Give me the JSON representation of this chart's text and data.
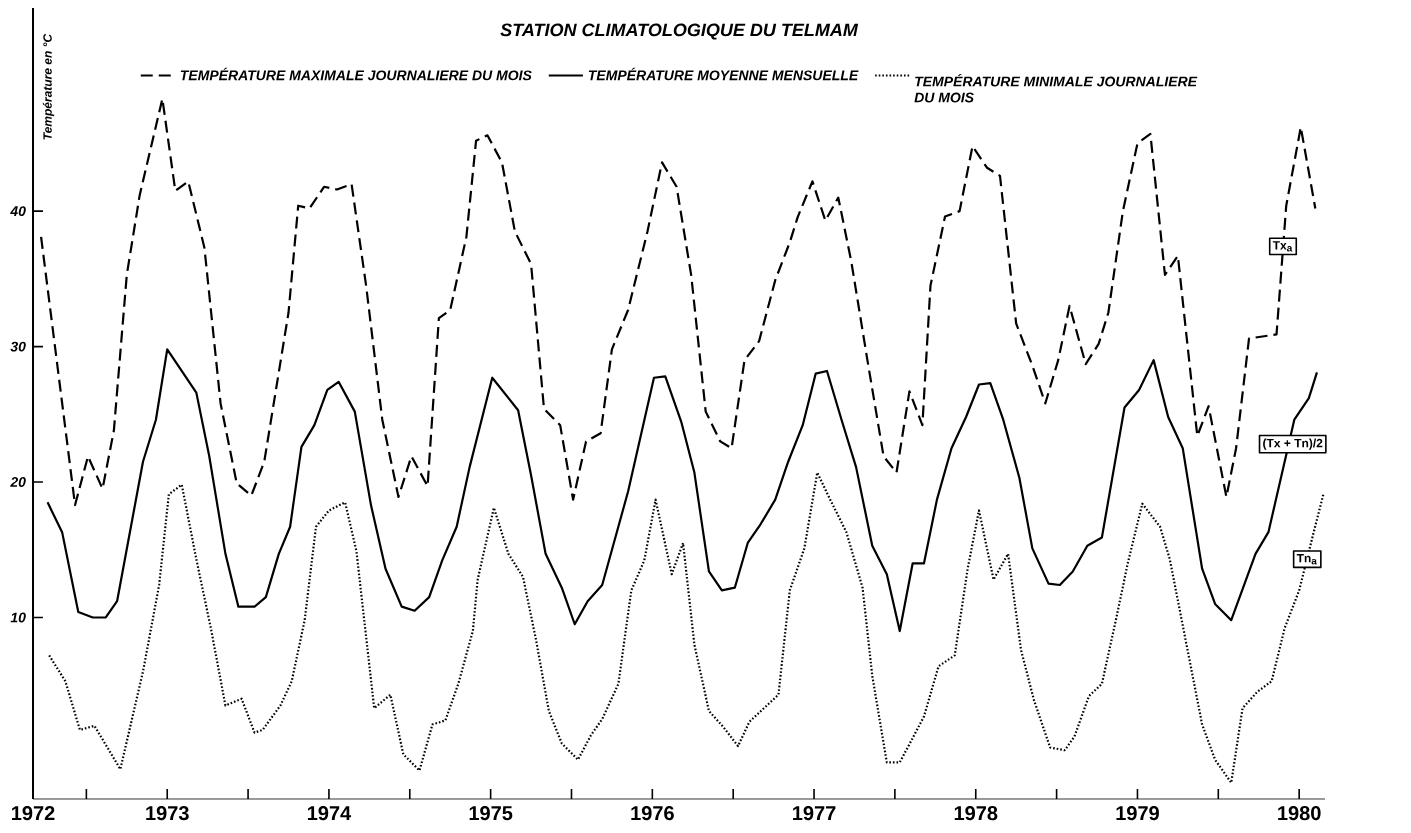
{
  "chart_data": {
    "type": "line",
    "title": "STATION CLIMATOLOGIQUE DU TELMAM",
    "ylabel": "Température en °C",
    "xlim": [
      1972.17,
      1980.16
    ],
    "ylim": [
      -3.4,
      55
    ],
    "xticks": [
      {
        "value": 1972.17,
        "label": "1972"
      },
      {
        "value": 1972.5,
        "label": null
      },
      1973,
      {
        "value": 1973.5,
        "label": null
      },
      1974,
      {
        "value": 1974.5,
        "label": null
      },
      1975,
      {
        "value": 1975.5,
        "label": null
      },
      1976,
      {
        "value": 1976.5,
        "label": null
      },
      1977,
      {
        "value": 1977.5,
        "label": null
      },
      1978,
      {
        "value": 1978.5,
        "label": null
      },
      1979,
      {
        "value": 1979.5,
        "label": null
      },
      1980
    ],
    "yticks": [
      10,
      20,
      30,
      40
    ],
    "legend": "top",
    "series": [
      {
        "name": "TEMPÉRATURE MAXIMALE JOURNALIERE DU MOIS",
        "color": "#000000",
        "line_style": "dashed",
        "x": [
          1972.22,
          1972.43,
          1972.51,
          1972.6,
          1972.67,
          1972.75,
          1972.83,
          1972.97,
          1973.05,
          1973.13,
          1973.23,
          1973.33,
          1973.43,
          1973.52,
          1973.6,
          1973.75,
          1973.81,
          1973.88,
          1973.97,
          1974.05,
          1974.14,
          1974.23,
          1974.33,
          1974.43,
          1974.51,
          1974.61,
          1974.68,
          1974.75,
          1974.85,
          1974.91,
          1974.98,
          1975.07,
          1975.15,
          1975.25,
          1975.33,
          1975.43,
          1975.51,
          1975.59,
          1975.68,
          1975.75,
          1975.85,
          1975.97,
          1976.06,
          1976.15,
          1976.24,
          1976.33,
          1976.42,
          1976.49,
          1976.57,
          1976.66,
          1976.76,
          1976.85,
          1976.9,
          1976.99,
          1977.07,
          1977.15,
          1977.23,
          1977.33,
          1977.43,
          1977.51,
          1977.59,
          1977.67,
          1977.72,
          1977.81,
          1977.9,
          1977.98,
          1978.07,
          1978.15,
          1978.25,
          1978.35,
          1978.43,
          1978.51,
          1978.58,
          1978.68,
          1978.76,
          1978.82,
          1978.91,
          1979.0,
          1979.08,
          1979.17,
          1979.25,
          1979.37,
          1979.44,
          1979.55,
          1979.61,
          1979.69,
          1979.86,
          1979.92,
          1980.01,
          1980.1
        ],
        "values": [
          38.1,
          18.3,
          21.9,
          19.5,
          23.8,
          35.3,
          41.2,
          48.3,
          41.5,
          42.2,
          37.3,
          25.8,
          19.9,
          19.0,
          21.5,
          32.5,
          40.4,
          40.2,
          41.8,
          41.6,
          42.0,
          34.5,
          24.6,
          18.9,
          21.9,
          19.7,
          32.1,
          32.7,
          38.1,
          45.2,
          45.6,
          43.6,
          38.5,
          36.1,
          25.4,
          24.2,
          18.7,
          23.0,
          23.6,
          29.8,
          32.7,
          38.5,
          43.6,
          41.8,
          35.3,
          25.2,
          23.0,
          22.5,
          29.0,
          30.4,
          34.9,
          37.7,
          39.6,
          42.2,
          39.3,
          41.0,
          36.3,
          29.0,
          21.9,
          20.7,
          26.7,
          24.2,
          34.5,
          39.6,
          40.0,
          44.8,
          43.2,
          42.6,
          31.7,
          28.6,
          25.8,
          29.0,
          33.0,
          28.7,
          30.2,
          32.5,
          40.0,
          45.0,
          45.7,
          35.3,
          36.7,
          23.4,
          25.6,
          18.9,
          22.5,
          30.6,
          30.9,
          40.4,
          46.2,
          40.2
        ]
      },
      {
        "name": "TEMPÉRATURE MOYENNE MENSUELLE",
        "color": "#000000",
        "line_style": "solid",
        "x": [
          1972.26,
          1972.35,
          1972.45,
          1972.54,
          1972.62,
          1972.69,
          1972.85,
          1972.93,
          1973.0,
          1973.18,
          1973.26,
          1973.36,
          1973.44,
          1973.54,
          1973.61,
          1973.69,
          1973.76,
          1973.83,
          1973.91,
          1973.99,
          1974.06,
          1974.16,
          1974.26,
          1974.35,
          1974.45,
          1974.53,
          1974.62,
          1974.7,
          1974.79,
          1974.87,
          1975.01,
          1975.17,
          1975.25,
          1975.34,
          1975.44,
          1975.52,
          1975.6,
          1975.69,
          1975.85,
          1976.01,
          1976.08,
          1976.18,
          1976.26,
          1976.35,
          1976.43,
          1976.51,
          1976.59,
          1976.67,
          1976.76,
          1976.84,
          1976.93,
          1977.01,
          1977.08,
          1977.17,
          1977.26,
          1977.36,
          1977.45,
          1977.53,
          1977.61,
          1977.68,
          1977.76,
          1977.85,
          1977.94,
          1978.02,
          1978.09,
          1978.17,
          1978.27,
          1978.35,
          1978.45,
          1978.52,
          1978.6,
          1978.69,
          1978.78,
          1978.92,
          1979.01,
          1979.1,
          1979.19,
          1979.28,
          1979.4,
          1979.48,
          1979.58,
          1979.73,
          1979.81,
          1979.97,
          1980.06,
          1980.11
        ],
        "values": [
          18.5,
          16.3,
          10.4,
          10.0,
          10.0,
          11.2,
          21.5,
          24.6,
          29.8,
          26.6,
          21.9,
          14.7,
          10.8,
          10.8,
          11.5,
          14.7,
          16.7,
          22.6,
          24.2,
          26.8,
          27.4,
          25.2,
          18.3,
          13.6,
          10.8,
          10.5,
          11.5,
          14.2,
          16.7,
          21.1,
          27.7,
          25.3,
          20.5,
          14.7,
          12.2,
          9.5,
          11.2,
          12.4,
          19.3,
          27.7,
          27.8,
          24.4,
          20.7,
          13.4,
          12.0,
          12.2,
          15.5,
          16.9,
          18.7,
          21.5,
          24.2,
          28.0,
          28.2,
          24.6,
          21.1,
          15.3,
          13.2,
          9.0,
          14.0,
          14.0,
          18.7,
          22.5,
          24.8,
          27.2,
          27.3,
          24.6,
          20.3,
          15.1,
          12.5,
          12.4,
          13.4,
          15.3,
          15.9,
          25.5,
          26.8,
          29.0,
          24.8,
          22.5,
          13.6,
          11.0,
          9.8,
          14.7,
          16.3,
          24.6,
          26.2,
          28.1
        ]
      },
      {
        "name": "TEMPÉRATURE MINIMALE JOURNALIERE DU MOIS",
        "color": "#000000",
        "line_style": "dotted",
        "x": [
          1972.27,
          1972.37,
          1972.46,
          1972.55,
          1972.71,
          1972.85,
          1972.95,
          1973.01,
          1973.09,
          1973.18,
          1973.27,
          1973.36,
          1973.46,
          1973.54,
          1973.59,
          1973.7,
          1973.77,
          1973.85,
          1973.92,
          1974.0,
          1974.1,
          1974.17,
          1974.28,
          1974.38,
          1974.46,
          1974.56,
          1974.64,
          1974.72,
          1974.8,
          1974.89,
          1974.92,
          1975.02,
          1975.11,
          1975.2,
          1975.28,
          1975.36,
          1975.44,
          1975.54,
          1975.62,
          1975.69,
          1975.79,
          1975.87,
          1975.95,
          1976.02,
          1976.12,
          1976.19,
          1976.26,
          1976.35,
          1976.44,
          1976.53,
          1976.6,
          1976.69,
          1976.78,
          1976.85,
          1976.94,
          1977.02,
          1977.1,
          1977.2,
          1977.3,
          1977.36,
          1977.45,
          1977.53,
          1977.61,
          1977.68,
          1977.77,
          1977.87,
          1977.95,
          1978.02,
          1978.11,
          1978.2,
          1978.28,
          1978.36,
          1978.46,
          1978.55,
          1978.61,
          1978.7,
          1978.78,
          1978.87,
          1978.94,
          1979.03,
          1979.14,
          1979.2,
          1979.3,
          1979.4,
          1979.48,
          1979.58,
          1979.65,
          1979.74,
          1979.83,
          1979.91,
          1980.0,
          1980.09,
          1980.15
        ],
        "values": [
          7.2,
          5.3,
          1.7,
          2.0,
          -1.2,
          6.0,
          12.4,
          19.1,
          19.8,
          14.3,
          9.2,
          3.5,
          4.0,
          1.5,
          1.7,
          3.5,
          5.3,
          9.8,
          16.7,
          17.9,
          18.5,
          14.9,
          3.3,
          4.3,
          -0.1,
          -1.3,
          2.1,
          2.4,
          5.1,
          9.0,
          12.8,
          18.1,
          14.7,
          13.0,
          8.4,
          3.1,
          0.7,
          -0.5,
          1.3,
          2.5,
          5.1,
          12.0,
          14.2,
          18.7,
          13.2,
          15.5,
          8.0,
          3.1,
          1.9,
          0.5,
          2.3,
          3.3,
          4.3,
          12.0,
          15.1,
          20.7,
          18.7,
          16.3,
          12.2,
          5.7,
          -0.7,
          -0.7,
          1.1,
          2.7,
          6.4,
          7.2,
          13.6,
          17.9,
          12.8,
          14.7,
          7.6,
          3.9,
          0.4,
          0.2,
          1.2,
          4.2,
          5.1,
          10.0,
          14.0,
          18.4,
          16.7,
          14.3,
          8.2,
          2.1,
          -0.5,
          -2.2,
          3.3,
          4.5,
          5.3,
          9.2,
          12.0,
          16.3,
          19.1
        ]
      }
    ],
    "annotations": [
      {
        "text": "Tx$_{a}$",
        "x": 1979.9,
        "y": 37.4
      },
      {
        "text": "(Tx + Tn)/2",
        "x": 1979.96,
        "y": 22.8
      },
      {
        "text": "Tn$_{a}$",
        "x": 1980.05,
        "y": 14.3
      }
    ]
  }
}
